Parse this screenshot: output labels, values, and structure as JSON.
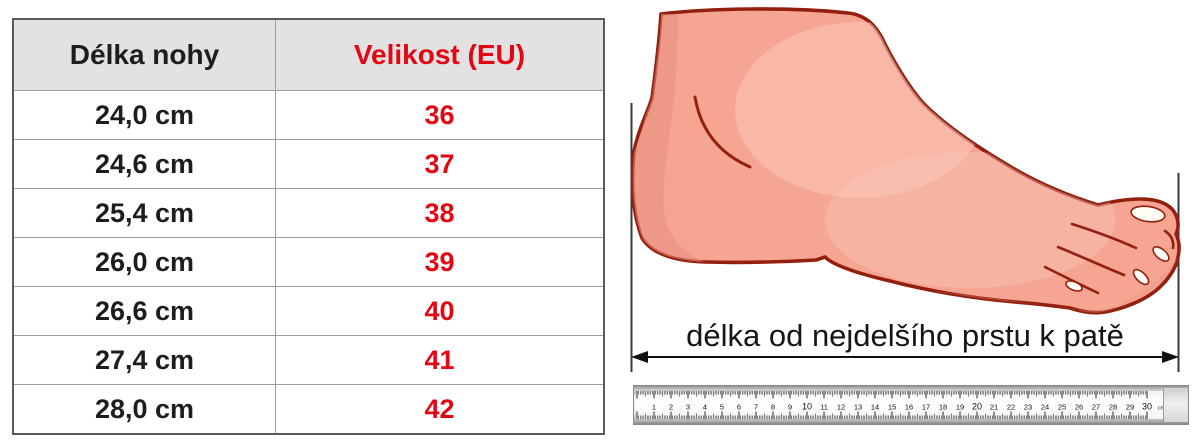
{
  "table": {
    "headers": {
      "length": "Délka nohy",
      "size": "Velikost (EU)"
    },
    "rows": [
      {
        "length": "24,0 cm",
        "size": "36"
      },
      {
        "length": "24,6 cm",
        "size": "37"
      },
      {
        "length": "25,4 cm",
        "size": "38"
      },
      {
        "length": "26,0 cm",
        "size": "39"
      },
      {
        "length": "26,6 cm",
        "size": "40"
      },
      {
        "length": "27,4 cm",
        "size": "41"
      },
      {
        "length": "28,0 cm",
        "size": "42"
      }
    ]
  },
  "diagram": {
    "caption": "délka od nejdelšího prstu k patě"
  },
  "ruler": {
    "numbers": [
      1,
      2,
      3,
      4,
      5,
      6,
      7,
      8,
      9,
      10,
      11,
      12,
      13,
      14,
      15,
      16,
      17,
      18,
      19,
      20,
      21,
      22,
      23,
      24,
      25,
      26,
      27,
      28,
      29,
      30
    ],
    "unit": "cm"
  },
  "colors": {
    "size_red": "#e30613",
    "text_black": "#1d1d1b",
    "header_bg": "#e2e2e2",
    "skin": "#f6a593",
    "skin_shadow": "#e8907e",
    "skin_highlight": "#fbc7b8",
    "outline": "#93200f",
    "line_color": "#3a3a3a"
  }
}
